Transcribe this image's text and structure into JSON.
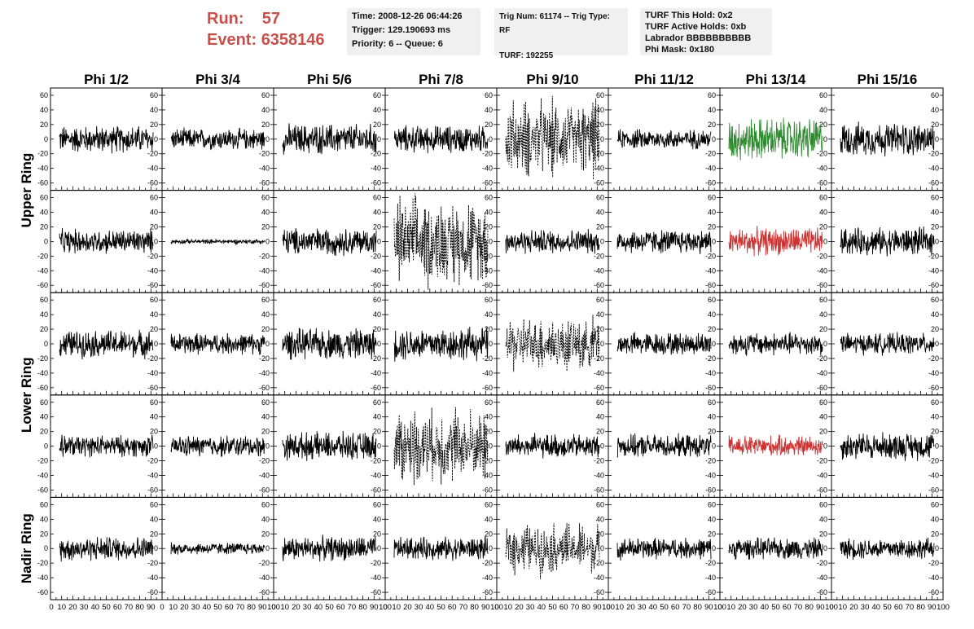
{
  "header": {
    "run_label": "Run:",
    "run_value": "57",
    "event_label": "Event:",
    "event_value": "6358146",
    "time": "Time: 2008-12-26 06:44:26",
    "trigger": "Trigger: 129.190693 ms",
    "priority": "Priority: 6 -- Queue: 6",
    "trig_num": "Trig Num: 61174 -- Trig Type: RF",
    "turf": "TURF: 192255",
    "turf_this_hold": "TURF This Hold: 0x2",
    "turf_active_holds": "TURF Active Holds: 0xb",
    "labrador": "Labrador BBBBBBBBBB",
    "phi_mask": "Phi Mask: 0x180"
  },
  "columns": [
    "Phi 1/2",
    "Phi 3/4",
    "Phi 5/6",
    "Phi 7/8",
    "Phi 9/10",
    "Phi 11/12",
    "Phi 13/14",
    "Phi 15/16"
  ],
  "row_labels": [
    {
      "label": "Upper Ring",
      "rows": [
        0,
        1
      ]
    },
    {
      "label": "Lower Ring",
      "rows": [
        2,
        3
      ]
    },
    {
      "label": "Nadir Ring",
      "rows": [
        4
      ]
    }
  ],
  "colors": {
    "trace": "#000000",
    "green": "#2e8b2e",
    "red": "#cc3333",
    "header_red": "#c8504a"
  },
  "chart_data": {
    "type": "line",
    "ylim": [
      -70,
      70
    ],
    "xlim": [
      0,
      100
    ],
    "y_ticks": [
      -60,
      -40,
      -20,
      0,
      20,
      40,
      60
    ],
    "x_ticks": [
      0,
      10,
      20,
      30,
      40,
      50,
      60,
      70,
      80,
      90,
      100
    ],
    "x_tick_labels": [
      "0",
      "10",
      "20",
      "30",
      "40",
      "50",
      "60",
      "70",
      "80",
      "90",
      "100"
    ],
    "first_x_tick_labels": [
      "0",
      "10",
      "20",
      "30",
      "40",
      "50",
      "60",
      "70",
      "80",
      "90"
    ],
    "grid": false,
    "panels": [
      [
        {
          "style": "solid",
          "amp": 18,
          "color": "trace"
        },
        {
          "style": "solid",
          "amp": 14,
          "color": "trace"
        },
        {
          "style": "solid",
          "amp": 20,
          "color": "trace"
        },
        {
          "style": "solid",
          "amp": 18,
          "color": "trace"
        },
        {
          "style": "dashed",
          "amp": 30,
          "color": "trace"
        },
        {
          "style": "solid",
          "amp": 13,
          "color": "trace"
        },
        {
          "style": "solid",
          "amp": 28,
          "color": "green"
        },
        {
          "style": "solid",
          "amp": 22,
          "color": "trace"
        }
      ],
      [
        {
          "style": "solid",
          "amp": 16,
          "color": "trace"
        },
        {
          "style": "solid",
          "amp": 3,
          "color": "trace"
        },
        {
          "style": "solid",
          "amp": 18,
          "color": "trace"
        },
        {
          "style": "dashed",
          "amp": 35,
          "color": "trace"
        },
        {
          "style": "solid",
          "amp": 16,
          "color": "trace"
        },
        {
          "style": "solid",
          "amp": 16,
          "color": "trace"
        },
        {
          "style": "solid",
          "amp": 18,
          "color": "red"
        },
        {
          "style": "solid",
          "amp": 18,
          "color": "trace"
        }
      ],
      [
        {
          "style": "solid",
          "amp": 18,
          "color": "trace"
        },
        {
          "style": "solid",
          "amp": 14,
          "color": "trace"
        },
        {
          "style": "solid",
          "amp": 20,
          "color": "trace"
        },
        {
          "style": "solid",
          "amp": 22,
          "color": "trace"
        },
        {
          "style": "dashed",
          "amp": 22,
          "color": "trace"
        },
        {
          "style": "solid",
          "amp": 15,
          "color": "trace"
        },
        {
          "style": "solid",
          "amp": 15,
          "color": "trace"
        },
        {
          "style": "solid",
          "amp": 14,
          "color": "trace"
        }
      ],
      [
        {
          "style": "solid",
          "amp": 14,
          "color": "trace"
        },
        {
          "style": "solid",
          "amp": 14,
          "color": "trace"
        },
        {
          "style": "solid",
          "amp": 18,
          "color": "trace"
        },
        {
          "style": "dashed",
          "amp": 30,
          "color": "trace"
        },
        {
          "style": "solid",
          "amp": 16,
          "color": "trace"
        },
        {
          "style": "solid",
          "amp": 15,
          "color": "trace"
        },
        {
          "style": "solid",
          "amp": 14,
          "color": "red"
        },
        {
          "style": "solid",
          "amp": 18,
          "color": "trace"
        }
      ],
      [
        {
          "style": "solid",
          "amp": 16,
          "color": "trace"
        },
        {
          "style": "solid",
          "amp": 8,
          "color": "trace"
        },
        {
          "style": "solid",
          "amp": 16,
          "color": "trace"
        },
        {
          "style": "solid",
          "amp": 15,
          "color": "trace"
        },
        {
          "style": "dashed",
          "amp": 20,
          "color": "trace"
        },
        {
          "style": "solid",
          "amp": 14,
          "color": "trace"
        },
        {
          "style": "solid",
          "amp": 14,
          "color": "trace"
        },
        {
          "style": "solid",
          "amp": 14,
          "color": "trace"
        }
      ]
    ]
  }
}
